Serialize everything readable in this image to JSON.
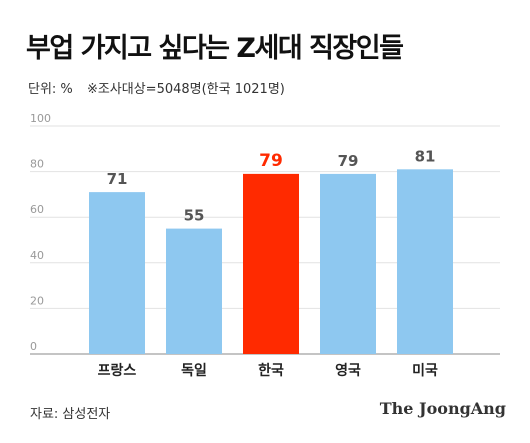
{
  "header": {
    "title": "부업 가지고 싶다는 Z세대 직장인들",
    "unit_label": "단위: %",
    "note": "※조사대상=5048명(한국 1021명)"
  },
  "footer": {
    "source": "자료: 삼성전자",
    "brand": "The JoongAng"
  },
  "chart_data": {
    "type": "bar",
    "categories": [
      "프랑스",
      "독일",
      "한국",
      "영국",
      "미국"
    ],
    "values": [
      71,
      55,
      79,
      79,
      81
    ],
    "highlight_index": 2,
    "ylim": [
      0,
      100
    ],
    "yticks": [
      0,
      20,
      40,
      60,
      80,
      100
    ],
    "grid": true,
    "colors": {
      "bar": "#8ec8f0",
      "highlight": "#ff2a00",
      "value_label": "#555555",
      "highlight_label": "#ff2a00"
    }
  }
}
